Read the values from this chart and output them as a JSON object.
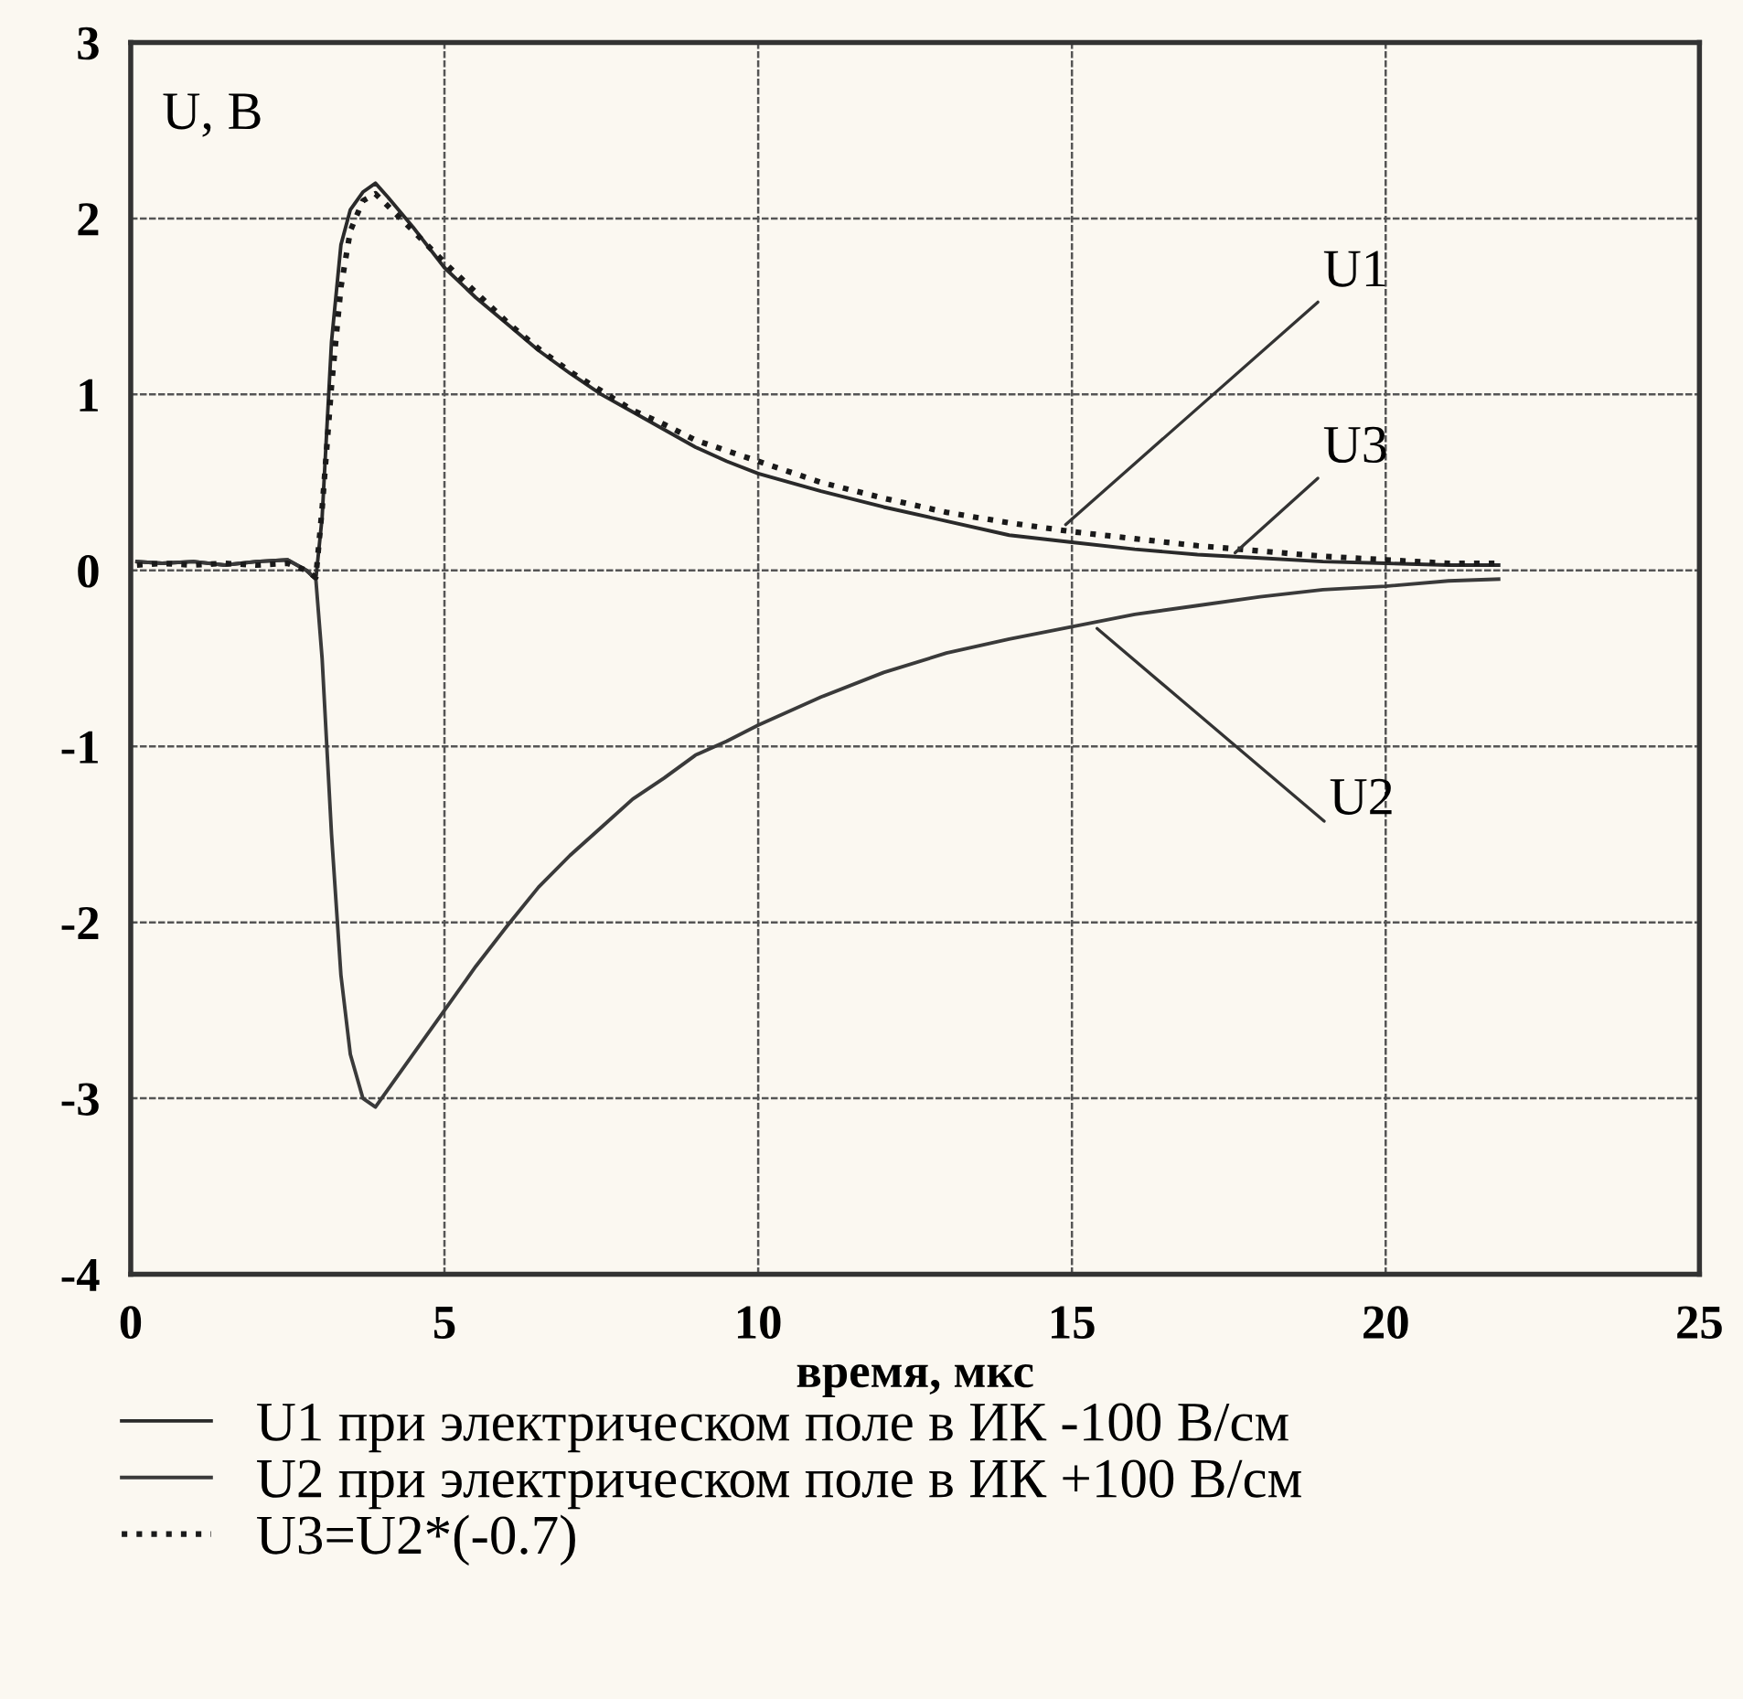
{
  "chart_data": {
    "type": "line",
    "xlabel": "время, мкс",
    "ylabel": "U, B",
    "x": [
      0.1,
      0.5,
      1,
      1.5,
      2,
      2.5,
      2.8,
      2.95,
      3.05,
      3.2,
      3.35,
      3.5,
      3.7,
      3.9,
      4.1,
      4.5,
      5,
      5.5,
      6,
      6.5,
      7,
      7.5,
      8,
      8.5,
      9,
      9.5,
      10,
      11,
      12,
      13,
      14,
      15,
      16,
      17,
      18,
      19,
      20,
      21,
      21.8
    ],
    "series": [
      {
        "name": "U1 при электрическом поле в ИК -100 В/см",
        "color": "#2a2a2a",
        "line_style": "solid",
        "values": [
          0.05,
          0.04,
          0.05,
          0.03,
          0.05,
          0.06,
          0.0,
          -0.05,
          0.3,
          1.3,
          1.85,
          2.05,
          2.15,
          2.2,
          2.12,
          1.95,
          1.72,
          1.55,
          1.4,
          1.25,
          1.12,
          1.0,
          0.9,
          0.8,
          0.7,
          0.62,
          0.55,
          0.45,
          0.36,
          0.28,
          0.2,
          0.16,
          0.12,
          0.09,
          0.07,
          0.05,
          0.04,
          0.03,
          0.03
        ]
      },
      {
        "name": "U2 при электрическом поле в ИК +100 В/см",
        "color": "#3a3a3a",
        "line_style": "solid",
        "values": [
          0.05,
          0.04,
          0.05,
          0.03,
          0.05,
          0.06,
          0.0,
          -0.05,
          -0.5,
          -1.5,
          -2.3,
          -2.75,
          -3.0,
          -3.05,
          -2.95,
          -2.75,
          -2.5,
          -2.25,
          -2.02,
          -1.8,
          -1.62,
          -1.46,
          -1.3,
          -1.18,
          -1.05,
          -0.97,
          -0.88,
          -0.72,
          -0.58,
          -0.47,
          -0.39,
          -0.32,
          -0.25,
          -0.2,
          -0.15,
          -0.11,
          -0.09,
          -0.06,
          -0.05
        ]
      },
      {
        "name": "U3=U2*(-0.7)",
        "color": "#1a1a1a",
        "line_style": "dotted",
        "values": [
          0.03,
          0.04,
          0.03,
          0.04,
          0.03,
          0.04,
          0.0,
          -0.04,
          0.35,
          1.05,
          1.61,
          1.93,
          2.1,
          2.14,
          2.07,
          1.93,
          1.75,
          1.58,
          1.41,
          1.26,
          1.13,
          1.02,
          0.91,
          0.83,
          0.74,
          0.68,
          0.62,
          0.5,
          0.41,
          0.33,
          0.27,
          0.22,
          0.18,
          0.14,
          0.11,
          0.08,
          0.06,
          0.04,
          0.04
        ]
      }
    ],
    "annotations": [
      {
        "text": "U1",
        "x": 14.9,
        "y": 0.26
      },
      {
        "text": "U3",
        "x": 17.6,
        "y": 0.1
      },
      {
        "text": "U2",
        "x": 15.4,
        "y": -0.33
      }
    ],
    "xlim": [
      0,
      25
    ],
    "xticks": [
      0,
      5,
      10,
      15,
      20,
      25
    ],
    "ylim": [
      -4,
      3
    ],
    "yticks": [
      -4,
      -3,
      -2,
      -1,
      0,
      1,
      2,
      3
    ],
    "grid": true,
    "legend": "bottom"
  }
}
